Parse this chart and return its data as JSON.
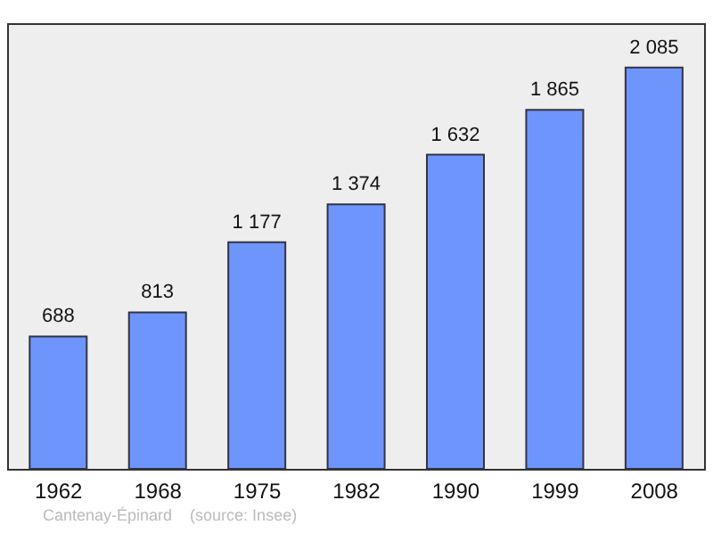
{
  "chart_data": {
    "type": "bar",
    "categories": [
      "1962",
      "1968",
      "1975",
      "1982",
      "1990",
      "1999",
      "2008"
    ],
    "values": [
      688,
      813,
      1177,
      1374,
      1632,
      1865,
      2085
    ],
    "value_labels": [
      "688",
      "813",
      "1 177",
      "1 374",
      "1 632",
      "1 865",
      "2 085"
    ],
    "color": "#6e95fb",
    "annotations": [
      "Cantenay-Épinard",
      "(source: Insee)"
    ]
  }
}
